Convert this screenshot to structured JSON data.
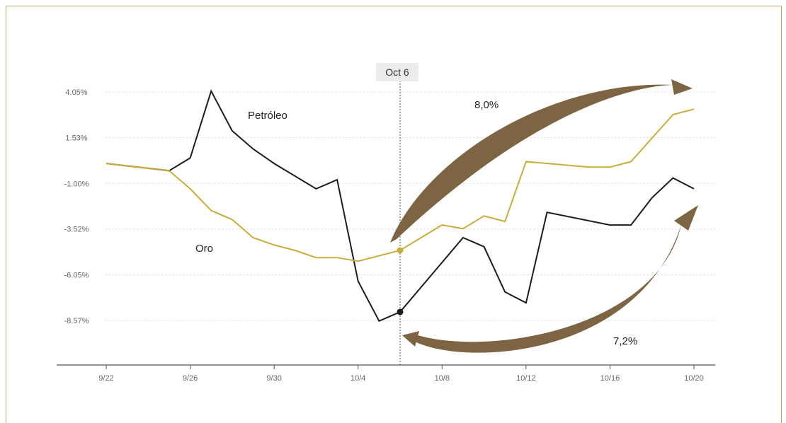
{
  "chart_data": {
    "type": "line",
    "y_ticks": [
      "4.05%",
      "1.53%",
      "-1.00%",
      "-3.52%",
      "-6.05%",
      "-8.57%"
    ],
    "y_tick_values": [
      4.05,
      1.53,
      -1.0,
      -3.52,
      -6.05,
      -8.57
    ],
    "ylim": [
      -11.0,
      5.5
    ],
    "xlim": [
      0,
      28
    ],
    "x_ticks": [
      {
        "x": 0,
        "label": "9/22"
      },
      {
        "x": 4,
        "label": "9/26"
      },
      {
        "x": 8,
        "label": "9/30"
      },
      {
        "x": 12,
        "label": "10/4"
      },
      {
        "x": 16,
        "label": "10/8"
      },
      {
        "x": 20,
        "label": "10/12"
      },
      {
        "x": 24,
        "label": "10/16"
      },
      {
        "x": 28,
        "label": "10/20"
      }
    ],
    "grid": true,
    "series": [
      {
        "name": "Petróleo",
        "color": "#1c1c1c",
        "points": [
          [
            0,
            0.1
          ],
          [
            3,
            -0.3
          ],
          [
            4,
            0.4
          ],
          [
            5,
            4.1
          ],
          [
            6,
            1.9
          ],
          [
            7,
            0.9
          ],
          [
            8,
            0.1
          ],
          [
            10,
            -1.3
          ],
          [
            11,
            -0.8
          ],
          [
            12,
            -6.4
          ],
          [
            13,
            -8.6
          ],
          [
            14,
            -8.1
          ],
          [
            17,
            -4.0
          ],
          [
            18,
            -4.5
          ],
          [
            19,
            -7.0
          ],
          [
            20,
            -7.6
          ],
          [
            21,
            -2.6
          ],
          [
            24,
            -3.3
          ],
          [
            25,
            -3.3
          ],
          [
            26,
            -1.8
          ],
          [
            27,
            -0.7
          ],
          [
            28,
            -1.3
          ]
        ]
      },
      {
        "name": "Oro",
        "color": "#c9ad3a",
        "points": [
          [
            0,
            0.1
          ],
          [
            3,
            -0.3
          ],
          [
            4,
            -1.3
          ],
          [
            5,
            -2.5
          ],
          [
            6,
            -3.0
          ],
          [
            7,
            -4.0
          ],
          [
            8,
            -4.4
          ],
          [
            9,
            -4.7
          ],
          [
            10,
            -5.1
          ],
          [
            11,
            -5.1
          ],
          [
            12,
            -5.3
          ],
          [
            14,
            -4.7
          ],
          [
            15,
            -4.0
          ],
          [
            16,
            -3.3
          ],
          [
            17,
            -3.5
          ],
          [
            18,
            -2.8
          ],
          [
            19,
            -3.1
          ],
          [
            20,
            0.2
          ],
          [
            23,
            -0.1
          ],
          [
            24,
            -0.1
          ],
          [
            25,
            0.2
          ],
          [
            27,
            2.8
          ],
          [
            28,
            3.1
          ]
        ]
      }
    ],
    "marker": {
      "x": 14,
      "label": "Oct 6"
    },
    "marker_points": [
      {
        "series": "Petróleo",
        "y": -8.1,
        "color": "#1c1c1c"
      },
      {
        "series": "Oro",
        "y": -4.7,
        "color": "#c9ad3a"
      }
    ],
    "series_labels": [
      "Petróleo",
      "Oro"
    ],
    "annotations": [
      "8,0%",
      "7,2%"
    ],
    "arrow_color": "#7d6443"
  }
}
